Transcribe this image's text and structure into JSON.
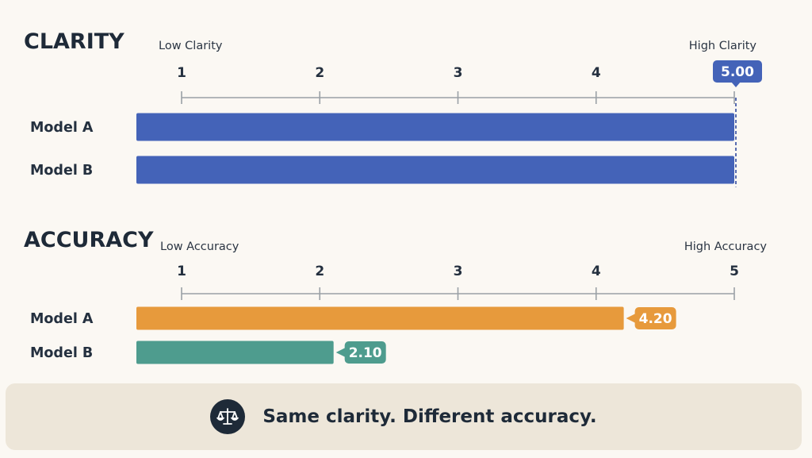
{
  "footer": {
    "text": "Same clarity. Different accuracy.",
    "icon": "balance-scale-icon"
  },
  "colors": {
    "blue": "#4463b8",
    "orange": "#e79a3c",
    "teal": "#4e9c8e",
    "axis": "#9aa0a6",
    "dark": "#1e2a38"
  },
  "chart_data": [
    {
      "type": "bar",
      "orientation": "horizontal",
      "title": "CLARITY",
      "low_label": "Low Clarity",
      "high_label": "High Clarity",
      "xlim": [
        1,
        5
      ],
      "ticks": [
        "1",
        "2",
        "3",
        "4",
        "5"
      ],
      "categories": [
        "Model A",
        "Model B"
      ],
      "values": [
        5.0,
        5.0
      ],
      "value_labels": [
        "5.00"
      ],
      "reference_line": 5.0,
      "bar_colors": [
        "#4463b8",
        "#4463b8"
      ]
    },
    {
      "type": "bar",
      "orientation": "horizontal",
      "title": "ACCURACY",
      "low_label": "Low Accuracy",
      "high_label": "High Accuracy",
      "xlim": [
        1,
        5
      ],
      "ticks": [
        "1",
        "2",
        "3",
        "4",
        "5"
      ],
      "categories": [
        "Model A",
        "Model B"
      ],
      "values": [
        4.2,
        2.1
      ],
      "value_labels": [
        "4.20",
        "2.10"
      ],
      "bar_colors": [
        "#e79a3c",
        "#4e9c8e"
      ]
    }
  ]
}
